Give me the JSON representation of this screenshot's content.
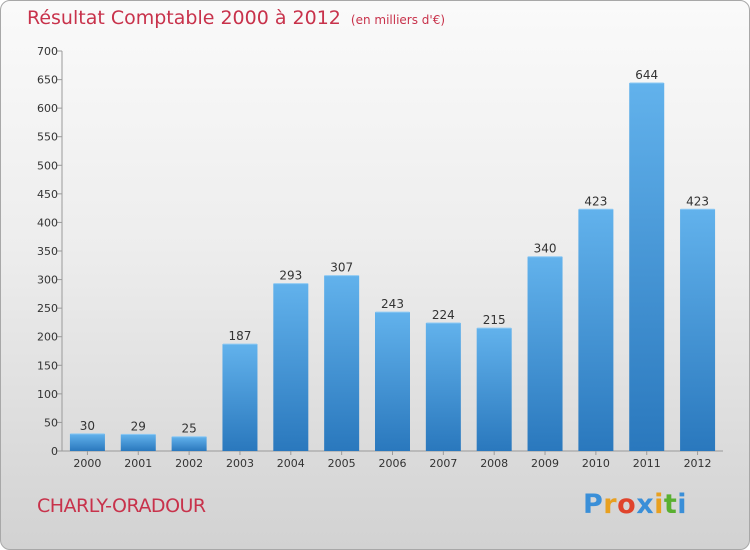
{
  "header": {
    "title": "Résultat Comptable 2000 à 2012",
    "subtitle": "(en milliers d'€)"
  },
  "footer": {
    "town": "CHARLY-ORADOUR",
    "logo_letters": [
      "P",
      "r",
      "o",
      "x",
      "i",
      "t",
      "i"
    ],
    "logo_colors": [
      "#3a8fd8",
      "#e8a020",
      "#e0442c",
      "#3a8fd8",
      "#e8a020",
      "#59b030",
      "#3a8fd8"
    ]
  },
  "colors": {
    "title": "#c8324b",
    "bar_top": "#62b2ec",
    "bar_bottom": "#2a78bd"
  },
  "chart_data": {
    "type": "bar",
    "categories": [
      "2000",
      "2001",
      "2002",
      "2003",
      "2004",
      "2005",
      "2006",
      "2007",
      "2008",
      "2009",
      "2010",
      "2011",
      "2012"
    ],
    "values": [
      30,
      29,
      25,
      187,
      293,
      307,
      243,
      224,
      215,
      340,
      423,
      644,
      423
    ],
    "ylim": [
      0,
      700
    ],
    "yticks": [
      0,
      50,
      100,
      150,
      200,
      250,
      300,
      350,
      400,
      450,
      500,
      550,
      600,
      650,
      700
    ],
    "grid": false,
    "data_labels": true
  }
}
